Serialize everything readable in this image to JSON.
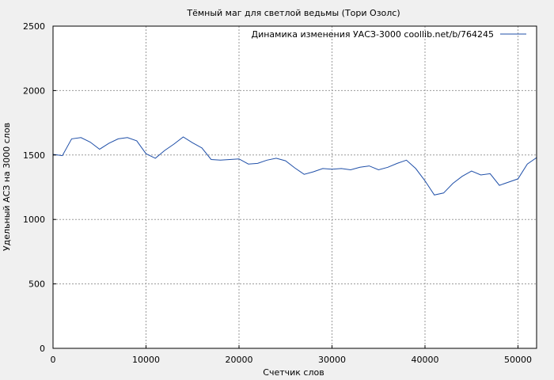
{
  "chart_data": {
    "type": "line",
    "title": "Тёмный маг для светлой ведьмы (Тори Озолс)",
    "xlabel": "Счетчик слов",
    "ylabel": "Удельный АСЗ на 3000 слов",
    "xlim": [
      0,
      52000
    ],
    "ylim": [
      0,
      2500
    ],
    "xticks": [
      0,
      10000,
      20000,
      30000,
      40000,
      50000
    ],
    "yticks": [
      0,
      500,
      1000,
      1500,
      2000,
      2500
    ],
    "grid": true,
    "legend_position": "top-right",
    "series": [
      {
        "name": "Динамика изменения УАСЗ-3000 coollib.net/b/764245",
        "color": "#1f4fa8",
        "x": [
          0,
          1000,
          2000,
          3000,
          4000,
          5000,
          6000,
          7000,
          8000,
          9000,
          10000,
          11000,
          12000,
          13000,
          14000,
          15000,
          16000,
          17000,
          18000,
          19000,
          20000,
          21000,
          22000,
          23000,
          24000,
          25000,
          26000,
          27000,
          28000,
          29000,
          30000,
          31000,
          32000,
          33000,
          34000,
          35000,
          36000,
          37000,
          38000,
          39000,
          40000,
          41000,
          42000,
          43000,
          44000,
          45000,
          46000,
          47000,
          48000,
          49000,
          50000,
          51000,
          52000
        ],
        "y": [
          1505,
          1495,
          1625,
          1635,
          1600,
          1545,
          1590,
          1625,
          1635,
          1610,
          1510,
          1475,
          1535,
          1585,
          1640,
          1595,
          1555,
          1465,
          1460,
          1465,
          1470,
          1430,
          1435,
          1460,
          1475,
          1455,
          1400,
          1350,
          1370,
          1395,
          1390,
          1395,
          1385,
          1405,
          1415,
          1385,
          1405,
          1435,
          1460,
          1395,
          1300,
          1190,
          1205,
          1280,
          1335,
          1375,
          1345,
          1355,
          1265,
          1290,
          1315,
          1430,
          1480
        ]
      }
    ]
  }
}
